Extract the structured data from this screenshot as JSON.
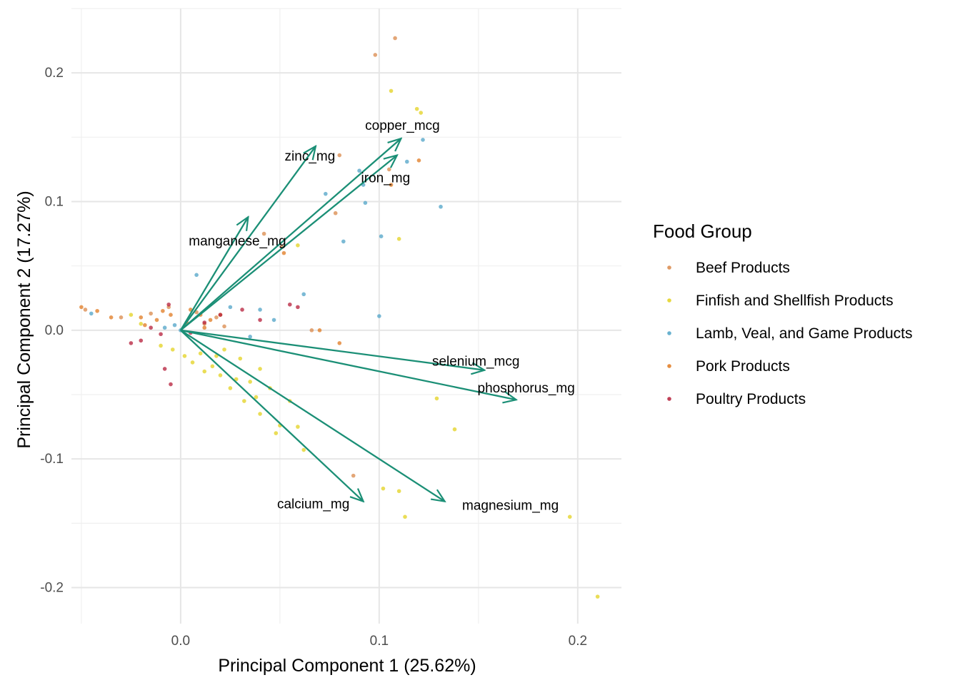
{
  "chart_data": {
    "type": "scatter",
    "subtype": "pca-biplot",
    "xlabel": "Principal Component 1 (25.62%)",
    "ylabel": "Principal Component 2 (17.27%)",
    "xlim": [
      -0.055,
      0.222
    ],
    "ylim": [
      -0.228,
      0.25
    ],
    "x_ticks": [
      0.0,
      0.1,
      0.2
    ],
    "x_tick_labels": [
      "0.0",
      "0.1",
      "0.2"
    ],
    "y_ticks": [
      -0.2,
      -0.1,
      0.0,
      0.1,
      0.2
    ],
    "y_tick_labels": [
      "-0.2",
      "-0.1",
      "0.0",
      "0.1",
      "0.2"
    ],
    "grid": true,
    "arrow_color": "#1b8f76",
    "legend": {
      "title": "Food Group",
      "placement": "right",
      "entries": [
        {
          "label": "Beef Products",
          "color": "#d9884a"
        },
        {
          "label": "Finfish and Shellfish Products",
          "color": "#e3d11f"
        },
        {
          "label": "Lamb, Veal, and Game Products",
          "color": "#4fa3c7"
        },
        {
          "label": "Pork Products",
          "color": "#e07a20"
        },
        {
          "label": "Poultry Products",
          "color": "#b51e3a"
        }
      ]
    },
    "loadings": [
      {
        "name": "zinc_mg",
        "x": 0.068,
        "y": 0.143
      },
      {
        "name": "copper_mcg",
        "x": 0.111,
        "y": 0.149
      },
      {
        "name": "iron_mg",
        "x": 0.109,
        "y": 0.136
      },
      {
        "name": "manganese_mg",
        "x": 0.034,
        "y": 0.088
      },
      {
        "name": "selenium_mcg",
        "x": 0.153,
        "y": -0.031
      },
      {
        "name": "phosphorus_mg",
        "x": 0.169,
        "y": -0.054
      },
      {
        "name": "calcium_mg",
        "x": 0.092,
        "y": -0.133
      },
      {
        "name": "magnesium_mg",
        "x": 0.133,
        "y": -0.133
      }
    ],
    "points": [
      {
        "group": "Beef Products",
        "x": 0.108,
        "y": 0.227
      },
      {
        "group": "Beef Products",
        "x": 0.098,
        "y": 0.214
      },
      {
        "group": "Beef Products",
        "x": 0.08,
        "y": 0.136
      },
      {
        "group": "Beef Products",
        "x": 0.105,
        "y": 0.125
      },
      {
        "group": "Beef Products",
        "x": 0.078,
        "y": 0.091
      },
      {
        "group": "Beef Products",
        "x": 0.051,
        "y": 0.065
      },
      {
        "group": "Beef Products",
        "x": 0.042,
        "y": 0.075
      },
      {
        "group": "Beef Products",
        "x": 0.087,
        "y": -0.113
      },
      {
        "group": "Beef Products",
        "x": 0.066,
        "y": -0.0
      },
      {
        "group": "Beef Products",
        "x": -0.048,
        "y": 0.016
      },
      {
        "group": "Beef Products",
        "x": -0.03,
        "y": 0.01
      },
      {
        "group": "Beef Products",
        "x": -0.015,
        "y": 0.013
      },
      {
        "group": "Beef Products",
        "x": 0.008,
        "y": 0.014
      },
      {
        "group": "Beef Products",
        "x": 0.012,
        "y": 0.005
      },
      {
        "group": "Beef Products",
        "x": -0.006,
        "y": 0.018
      },
      {
        "group": "Beef Products",
        "x": 0.018,
        "y": 0.01
      },
      {
        "group": "Beef Products",
        "x": 0.022,
        "y": 0.003
      },
      {
        "group": "Finfish and Shellfish Products",
        "x": 0.106,
        "y": 0.186
      },
      {
        "group": "Finfish and Shellfish Products",
        "x": 0.119,
        "y": 0.172
      },
      {
        "group": "Finfish and Shellfish Products",
        "x": 0.121,
        "y": 0.169
      },
      {
        "group": "Finfish and Shellfish Products",
        "x": 0.11,
        "y": 0.071
      },
      {
        "group": "Finfish and Shellfish Products",
        "x": 0.059,
        "y": 0.066
      },
      {
        "group": "Finfish and Shellfish Products",
        "x": 0.129,
        "y": -0.053
      },
      {
        "group": "Finfish and Shellfish Products",
        "x": 0.138,
        "y": -0.077
      },
      {
        "group": "Finfish and Shellfish Products",
        "x": 0.102,
        "y": -0.123
      },
      {
        "group": "Finfish and Shellfish Products",
        "x": 0.11,
        "y": -0.125
      },
      {
        "group": "Finfish and Shellfish Products",
        "x": 0.113,
        "y": -0.145
      },
      {
        "group": "Finfish and Shellfish Products",
        "x": 0.196,
        "y": -0.145
      },
      {
        "group": "Finfish and Shellfish Products",
        "x": 0.21,
        "y": -0.207
      },
      {
        "group": "Finfish and Shellfish Products",
        "x": 0.062,
        "y": -0.093
      },
      {
        "group": "Finfish and Shellfish Products",
        "x": 0.048,
        "y": -0.08
      },
      {
        "group": "Finfish and Shellfish Products",
        "x": 0.059,
        "y": -0.075
      },
      {
        "group": "Finfish and Shellfish Products",
        "x": 0.05,
        "y": -0.074
      },
      {
        "group": "Finfish and Shellfish Products",
        "x": 0.04,
        "y": -0.065
      },
      {
        "group": "Finfish and Shellfish Products",
        "x": 0.032,
        "y": -0.055
      },
      {
        "group": "Finfish and Shellfish Products",
        "x": 0.045,
        "y": -0.045
      },
      {
        "group": "Finfish and Shellfish Products",
        "x": 0.04,
        "y": -0.03
      },
      {
        "group": "Finfish and Shellfish Products",
        "x": 0.035,
        "y": -0.04
      },
      {
        "group": "Finfish and Shellfish Products",
        "x": 0.025,
        "y": -0.045
      },
      {
        "group": "Finfish and Shellfish Products",
        "x": 0.02,
        "y": -0.035
      },
      {
        "group": "Finfish and Shellfish Products",
        "x": 0.016,
        "y": -0.028
      },
      {
        "group": "Finfish and Shellfish Products",
        "x": 0.012,
        "y": -0.032
      },
      {
        "group": "Finfish and Shellfish Products",
        "x": 0.006,
        "y": -0.025
      },
      {
        "group": "Finfish and Shellfish Products",
        "x": 0.002,
        "y": -0.02
      },
      {
        "group": "Finfish and Shellfish Products",
        "x": -0.004,
        "y": -0.015
      },
      {
        "group": "Finfish and Shellfish Products",
        "x": -0.01,
        "y": -0.012
      },
      {
        "group": "Finfish and Shellfish Products",
        "x": 0.01,
        "y": -0.018
      },
      {
        "group": "Finfish and Shellfish Products",
        "x": 0.018,
        "y": -0.02
      },
      {
        "group": "Finfish and Shellfish Products",
        "x": 0.022,
        "y": -0.015
      },
      {
        "group": "Finfish and Shellfish Products",
        "x": -0.02,
        "y": 0.005
      },
      {
        "group": "Finfish and Shellfish Products",
        "x": -0.025,
        "y": 0.012
      },
      {
        "group": "Finfish and Shellfish Products",
        "x": 0.028,
        "y": -0.038
      },
      {
        "group": "Finfish and Shellfish Products",
        "x": 0.055,
        "y": -0.055
      },
      {
        "group": "Finfish and Shellfish Products",
        "x": 0.038,
        "y": -0.052
      },
      {
        "group": "Finfish and Shellfish Products",
        "x": 0.03,
        "y": -0.022
      },
      {
        "group": "Lamb, Veal, and Game Products",
        "x": 0.122,
        "y": 0.148
      },
      {
        "group": "Lamb, Veal, and Game Products",
        "x": 0.09,
        "y": 0.124
      },
      {
        "group": "Lamb, Veal, and Game Products",
        "x": 0.092,
        "y": 0.113
      },
      {
        "group": "Lamb, Veal, and Game Products",
        "x": 0.073,
        "y": 0.106
      },
      {
        "group": "Lamb, Veal, and Game Products",
        "x": 0.114,
        "y": 0.131
      },
      {
        "group": "Lamb, Veal, and Game Products",
        "x": 0.131,
        "y": 0.096
      },
      {
        "group": "Lamb, Veal, and Game Products",
        "x": 0.093,
        "y": 0.099
      },
      {
        "group": "Lamb, Veal, and Game Products",
        "x": 0.101,
        "y": 0.073
      },
      {
        "group": "Lamb, Veal, and Game Products",
        "x": 0.082,
        "y": 0.069
      },
      {
        "group": "Lamb, Veal, and Game Products",
        "x": 0.1,
        "y": 0.011
      },
      {
        "group": "Lamb, Veal, and Game Products",
        "x": 0.062,
        "y": 0.028
      },
      {
        "group": "Lamb, Veal, and Game Products",
        "x": 0.008,
        "y": 0.043
      },
      {
        "group": "Lamb, Veal, and Game Products",
        "x": -0.003,
        "y": 0.004
      },
      {
        "group": "Lamb, Veal, and Game Products",
        "x": -0.008,
        "y": 0.002
      },
      {
        "group": "Lamb, Veal, and Game Products",
        "x": 0.0,
        "y": 0.0
      },
      {
        "group": "Lamb, Veal, and Game Products",
        "x": -0.045,
        "y": 0.013
      },
      {
        "group": "Lamb, Veal, and Game Products",
        "x": 0.025,
        "y": 0.018
      },
      {
        "group": "Lamb, Veal, and Game Products",
        "x": 0.04,
        "y": 0.016
      },
      {
        "group": "Lamb, Veal, and Game Products",
        "x": 0.047,
        "y": 0.008
      },
      {
        "group": "Lamb, Veal, and Game Products",
        "x": 0.035,
        "y": -0.005
      },
      {
        "group": "Pork Products",
        "x": 0.12,
        "y": 0.132
      },
      {
        "group": "Pork Products",
        "x": 0.106,
        "y": 0.113
      },
      {
        "group": "Pork Products",
        "x": 0.052,
        "y": 0.06
      },
      {
        "group": "Pork Products",
        "x": 0.07,
        "y": 0.0
      },
      {
        "group": "Pork Products",
        "x": 0.08,
        "y": -0.01
      },
      {
        "group": "Pork Products",
        "x": -0.042,
        "y": 0.015
      },
      {
        "group": "Pork Products",
        "x": -0.035,
        "y": 0.01
      },
      {
        "group": "Pork Products",
        "x": -0.02,
        "y": 0.01
      },
      {
        "group": "Pork Products",
        "x": -0.012,
        "y": 0.008
      },
      {
        "group": "Pork Products",
        "x": -0.005,
        "y": 0.012
      },
      {
        "group": "Pork Products",
        "x": 0.003,
        "y": 0.006
      },
      {
        "group": "Pork Products",
        "x": 0.01,
        "y": 0.012
      },
      {
        "group": "Pork Products",
        "x": 0.015,
        "y": 0.008
      },
      {
        "group": "Pork Products",
        "x": -0.009,
        "y": 0.015
      },
      {
        "group": "Pork Products",
        "x": 0.005,
        "y": 0.016
      },
      {
        "group": "Pork Products",
        "x": -0.018,
        "y": 0.004
      },
      {
        "group": "Pork Products",
        "x": 0.02,
        "y": 0.012
      },
      {
        "group": "Pork Products",
        "x": -0.05,
        "y": 0.018
      },
      {
        "group": "Pork Products",
        "x": 0.012,
        "y": 0.002
      },
      {
        "group": "Poultry Products",
        "x": 0.059,
        "y": 0.018
      },
      {
        "group": "Poultry Products",
        "x": 0.055,
        "y": 0.02
      },
      {
        "group": "Poultry Products",
        "x": 0.031,
        "y": 0.016
      },
      {
        "group": "Poultry Products",
        "x": 0.04,
        "y": 0.008
      },
      {
        "group": "Poultry Products",
        "x": 0.02,
        "y": 0.012
      },
      {
        "group": "Poultry Products",
        "x": -0.005,
        "y": -0.042
      },
      {
        "group": "Poultry Products",
        "x": -0.008,
        "y": -0.03
      },
      {
        "group": "Poultry Products",
        "x": -0.02,
        "y": -0.008
      },
      {
        "group": "Poultry Products",
        "x": -0.01,
        "y": -0.003
      },
      {
        "group": "Poultry Products",
        "x": -0.006,
        "y": 0.02
      },
      {
        "group": "Poultry Products",
        "x": 0.005,
        "y": -0.002
      },
      {
        "group": "Poultry Products",
        "x": -0.015,
        "y": 0.002
      },
      {
        "group": "Poultry Products",
        "x": -0.025,
        "y": -0.01
      },
      {
        "group": "Poultry Products",
        "x": 0.012,
        "y": 0.006
      }
    ]
  }
}
